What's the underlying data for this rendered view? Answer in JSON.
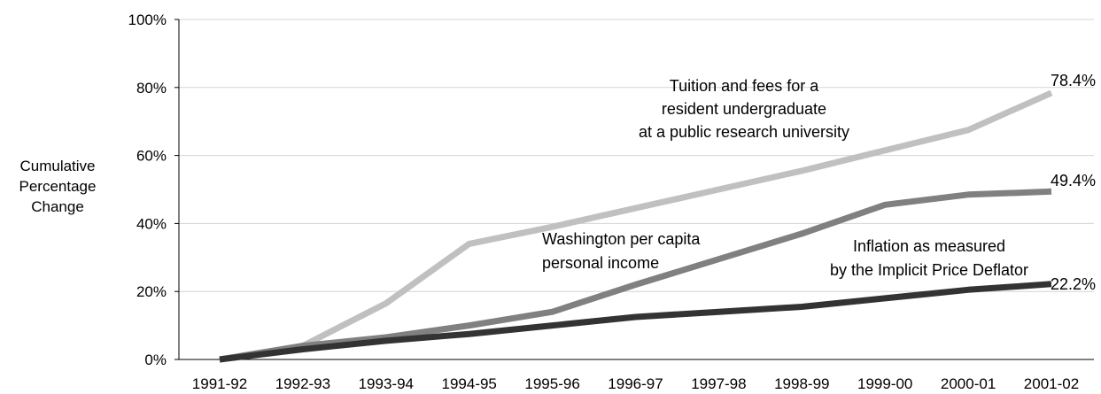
{
  "chart_data": {
    "type": "line",
    "ylabel": [
      "Cumulative",
      "Percentage",
      "Change"
    ],
    "xlabel": "",
    "categories": [
      "1991-92",
      "1992-93",
      "1993-94",
      "1994-95",
      "1995-96",
      "1996-97",
      "1997-98",
      "1998-99",
      "1999-00",
      "2000-01",
      "2001-02"
    ],
    "yticks": [
      "0%",
      "20%",
      "40%",
      "60%",
      "80%",
      "100%"
    ],
    "ylim": [
      0,
      100
    ],
    "grid": true,
    "legend": "none (series labelled directly on the plot)",
    "series": [
      {
        "name": [
          "Tuition and fees for a",
          "resident undergraduate",
          "at a public research university"
        ],
        "color": "#c0c0c0",
        "values": [
          0,
          4,
          16.5,
          34,
          39,
          44.5,
          50,
          55.5,
          61.5,
          67.5,
          78.4
        ],
        "end_label": "78.4%"
      },
      {
        "name": [
          "Washington per capita",
          "personal income"
        ],
        "color": "#808080",
        "values": [
          0,
          4,
          6.5,
          10,
          14,
          22,
          29.5,
          37,
          45.5,
          48.5,
          49.4
        ],
        "end_label": "49.4%"
      },
      {
        "name": [
          "Inflation as measured",
          "by the Implicit Price Deflator"
        ],
        "color": "#333333",
        "values": [
          0,
          3,
          5.5,
          7.5,
          10,
          12.5,
          14,
          15.5,
          18,
          20.5,
          22.2
        ],
        "end_label": "22.2%"
      }
    ]
  }
}
